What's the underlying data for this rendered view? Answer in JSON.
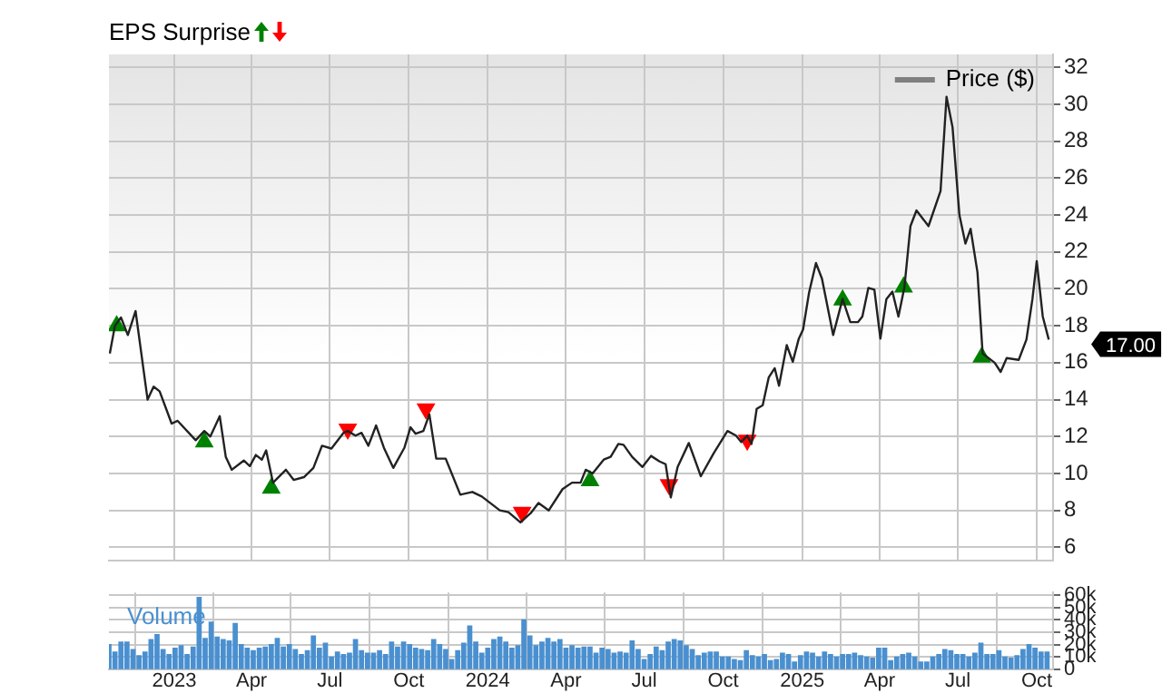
{
  "chart_data": [
    {
      "type": "line",
      "title": "EPS Surprise",
      "legend": "top right",
      "grid": true,
      "tick_labels": "y",
      "marker": "none",
      "xlim": [
        "2022-10-17",
        "2025-10-20"
      ],
      "ylim": [
        5.3,
        32.7
      ],
      "xticks": [
        {
          "value": "2023-01-01",
          "label": null
        },
        {
          "value": "2023-04-01",
          "label": null
        },
        {
          "value": "2023-07-01",
          "label": null
        },
        {
          "value": "2023-10-01",
          "label": null
        },
        {
          "value": "2024-01-01",
          "label": null
        },
        {
          "value": "2024-04-01",
          "label": null
        },
        {
          "value": "2024-07-01",
          "label": null
        },
        {
          "value": "2024-10-01",
          "label": null
        },
        {
          "value": "2025-01-01",
          "label": null
        },
        {
          "value": "2025-04-01",
          "label": null
        },
        {
          "value": "2025-07-01",
          "label": null
        },
        {
          "value": "2025-10-01",
          "label": null
        }
      ],
      "yticks": [
        6,
        8,
        10,
        12,
        14,
        16,
        18,
        20,
        22,
        24,
        26,
        28,
        30,
        32
      ],
      "annotations": [
        {
          "text": "17.00",
          "x": "2025-10-15",
          "y": 17
        }
      ],
      "series": [
        {
          "name": "Price ($)",
          "color": "#222222",
          "x": [
            "2022-10-18",
            "2022-10-24",
            "2022-10-31",
            "2022-11-08",
            "2022-11-17",
            "2022-12-01",
            "2022-12-08",
            "2022-12-15",
            "2022-12-29",
            "2023-01-05",
            "2023-01-26",
            "2023-02-05",
            "2023-02-12",
            "2023-02-23",
            "2023-03-02",
            "2023-03-09",
            "2023-03-23",
            "2023-03-30",
            "2023-04-06",
            "2023-04-13",
            "2023-04-18",
            "2023-04-26",
            "2023-05-11",
            "2023-05-20",
            "2023-06-01",
            "2023-06-12",
            "2023-06-22",
            "2023-07-03",
            "2023-07-17",
            "2023-07-22",
            "2023-07-31",
            "2023-08-07",
            "2023-08-15",
            "2023-08-24",
            "2023-09-02",
            "2023-09-13",
            "2023-09-26",
            "2023-10-03",
            "2023-10-09",
            "2023-10-18",
            "2023-10-25",
            "2023-11-02",
            "2023-11-13",
            "2023-11-30",
            "2023-12-14",
            "2023-12-25",
            "2024-01-15",
            "2024-01-25",
            "2024-02-08",
            "2024-02-20",
            "2024-02-29",
            "2024-03-12",
            "2024-03-28",
            "2024-04-08",
            "2024-04-18",
            "2024-04-24",
            "2024-05-02",
            "2024-05-15",
            "2024-05-23",
            "2024-06-01",
            "2024-06-07",
            "2024-06-17",
            "2024-06-29",
            "2024-07-09",
            "2024-07-19",
            "2024-07-26",
            "2024-08-01",
            "2024-08-09",
            "2024-08-22",
            "2024-09-05",
            "2024-09-20",
            "2024-10-06",
            "2024-10-16",
            "2024-10-22",
            "2024-10-29",
            "2024-11-03",
            "2024-11-09",
            "2024-11-16",
            "2024-11-23",
            "2024-11-30",
            "2024-12-05",
            "2024-12-14",
            "2024-12-21",
            "2024-12-28",
            "2025-01-02",
            "2025-01-09",
            "2025-01-17",
            "2025-01-24",
            "2025-02-06",
            "2025-02-17",
            "2025-02-26",
            "2025-03-07",
            "2025-03-12",
            "2025-03-19",
            "2025-03-26",
            "2025-04-02",
            "2025-04-09",
            "2025-04-16",
            "2025-04-23",
            "2025-04-30",
            "2025-05-07",
            "2025-05-14",
            "2025-05-28",
            "2025-06-11",
            "2025-06-18",
            "2025-06-25",
            "2025-07-03",
            "2025-07-10",
            "2025-07-16",
            "2025-07-24",
            "2025-07-30",
            "2025-08-13",
            "2025-08-20",
            "2025-08-27",
            "2025-09-10",
            "2025-09-19",
            "2025-09-26",
            "2025-10-01",
            "2025-10-08",
            "2025-10-15"
          ],
          "values": [
            16.5,
            18.0,
            18.45,
            17.5,
            18.8,
            14.0,
            14.7,
            14.45,
            12.7,
            12.85,
            11.8,
            12.3,
            12.0,
            13.1,
            10.9,
            10.2,
            10.7,
            10.4,
            11.0,
            10.75,
            11.25,
            9.5,
            10.2,
            9.65,
            9.8,
            10.3,
            11.5,
            11.35,
            12.2,
            12.3,
            12.05,
            12.2,
            11.5,
            12.6,
            11.4,
            10.3,
            11.4,
            12.5,
            12.15,
            12.3,
            13.2,
            10.8,
            10.8,
            8.85,
            9.0,
            8.75,
            8.0,
            7.9,
            7.35,
            7.85,
            8.4,
            8.0,
            9.15,
            9.5,
            9.5,
            10.2,
            10.0,
            10.75,
            10.9,
            11.6,
            11.55,
            10.9,
            10.35,
            10.95,
            10.65,
            10.5,
            8.7,
            10.35,
            11.65,
            9.85,
            11.1,
            12.3,
            12.05,
            11.7,
            12.05,
            11.6,
            13.5,
            13.7,
            15.2,
            15.7,
            14.75,
            16.95,
            16.05,
            17.3,
            17.8,
            19.8,
            21.4,
            20.55,
            17.5,
            19.45,
            18.2,
            18.2,
            18.5,
            20.05,
            19.95,
            17.3,
            19.45,
            19.85,
            18.5,
            20.1,
            23.4,
            24.25,
            23.4,
            25.3,
            30.4,
            28.75,
            24.0,
            22.45,
            23.25,
            20.9,
            16.5,
            16.0,
            15.5,
            16.25,
            16.15,
            17.25,
            19.45,
            21.5,
            18.5,
            17.25
          ]
        },
        {
          "type": "scatter",
          "color": "#008000",
          "marker": "triangle",
          "x": [
            "2022-10-26",
            "2023-02-05",
            "2023-04-24",
            "2024-04-29",
            "2025-02-17",
            "2025-04-29",
            "2025-07-29"
          ],
          "values": [
            18.0,
            11.7,
            9.2,
            9.6,
            19.4,
            20.1,
            16.3
          ]
        },
        {
          "type": "scatter",
          "color": "#ff0000",
          "marker": "triangle",
          "x": [
            "2023-07-22",
            "2023-10-21",
            "2024-02-10",
            "2024-07-30",
            "2024-10-29"
          ],
          "values": [
            12.4,
            13.5,
            7.9,
            9.4,
            11.8
          ]
        }
      ]
    },
    {
      "type": "bar",
      "legend": "top left",
      "grid": true,
      "xlim": [
        "2022-10-17",
        "2025-10-20"
      ],
      "ylim": [
        0,
        62000
      ],
      "xticks": [
        {
          "value": "2023-01-01",
          "label": "2023"
        },
        {
          "value": "2023-04-01",
          "label": "Apr"
        },
        {
          "value": "2023-07-01",
          "label": "Jul"
        },
        {
          "value": "2023-10-01",
          "label": "Oct"
        },
        {
          "value": "2024-01-01",
          "label": "2024"
        },
        {
          "value": "2024-04-01",
          "label": "Apr"
        },
        {
          "value": "2024-07-01",
          "label": "Jul"
        },
        {
          "value": "2024-10-01",
          "label": "Oct"
        },
        {
          "value": "2025-01-01",
          "label": "2025"
        },
        {
          "value": "2025-04-01",
          "label": "Apr"
        },
        {
          "value": "2025-07-01",
          "label": "Jul"
        },
        {
          "value": "2025-10-01",
          "label": "Oct"
        }
      ],
      "yticks": [
        0,
        {
          "value": 10000,
          "label": "10k"
        },
        {
          "value": 20000,
          "label": "20k"
        },
        {
          "value": 30000,
          "label": "30k"
        },
        {
          "value": 40000,
          "label": "40k"
        },
        {
          "value": 50000,
          "label": "50k"
        },
        {
          "value": 60000,
          "label": "60k"
        }
      ],
      "series": [
        {
          "name": "Volume",
          "color": "#4a90d0",
          "x": [
            "2022-10-17",
            "2022-10-24",
            "2022-10-31",
            "2022-11-07",
            "2022-11-14",
            "2022-11-21",
            "2022-11-28",
            "2022-12-05",
            "2022-12-12",
            "2022-12-19",
            "2022-12-26",
            "2023-01-02",
            "2023-01-09",
            "2023-01-16",
            "2023-01-23",
            "2023-01-30",
            "2023-02-06",
            "2023-02-13",
            "2023-02-20",
            "2023-02-27",
            "2023-03-06",
            "2023-03-13",
            "2023-03-20",
            "2023-03-27",
            "2023-04-03",
            "2023-04-10",
            "2023-04-17",
            "2023-04-24",
            "2023-05-01",
            "2023-05-08",
            "2023-05-15",
            "2023-05-22",
            "2023-05-29",
            "2023-06-05",
            "2023-06-12",
            "2023-06-19",
            "2023-06-26",
            "2023-07-03",
            "2023-07-10",
            "2023-07-17",
            "2023-07-24",
            "2023-07-31",
            "2023-08-07",
            "2023-08-14",
            "2023-08-21",
            "2023-08-28",
            "2023-09-04",
            "2023-09-11",
            "2023-09-18",
            "2023-09-25",
            "2023-10-02",
            "2023-10-09",
            "2023-10-16",
            "2023-10-23",
            "2023-10-30",
            "2023-11-06",
            "2023-11-13",
            "2023-11-20",
            "2023-11-27",
            "2023-12-04",
            "2023-12-11",
            "2023-12-18",
            "2023-12-25",
            "2024-01-01",
            "2024-01-08",
            "2024-01-15",
            "2024-01-22",
            "2024-01-29",
            "2024-02-05",
            "2024-02-12",
            "2024-02-19",
            "2024-02-26",
            "2024-03-04",
            "2024-03-11",
            "2024-03-18",
            "2024-03-25",
            "2024-04-01",
            "2024-04-08",
            "2024-04-15",
            "2024-04-22",
            "2024-04-29",
            "2024-05-06",
            "2024-05-13",
            "2024-05-20",
            "2024-05-27",
            "2024-06-03",
            "2024-06-10",
            "2024-06-17",
            "2024-06-24",
            "2024-07-01",
            "2024-07-08",
            "2024-07-15",
            "2024-07-22",
            "2024-07-29",
            "2024-08-05",
            "2024-08-12",
            "2024-08-19",
            "2024-08-26",
            "2024-09-02",
            "2024-09-09",
            "2024-09-16",
            "2024-09-23",
            "2024-09-30",
            "2024-10-07",
            "2024-10-14",
            "2024-10-21",
            "2024-10-28",
            "2024-11-04",
            "2024-11-11",
            "2024-11-18",
            "2024-11-25",
            "2024-12-02",
            "2024-12-09",
            "2024-12-16",
            "2024-12-23",
            "2024-12-30",
            "2025-01-06",
            "2025-01-13",
            "2025-01-20",
            "2025-01-27",
            "2025-02-03",
            "2025-02-10",
            "2025-02-17",
            "2025-02-24",
            "2025-03-03",
            "2025-03-10",
            "2025-03-17",
            "2025-03-24",
            "2025-03-31",
            "2025-04-07",
            "2025-04-14",
            "2025-04-21",
            "2025-04-28",
            "2025-05-05",
            "2025-05-12",
            "2025-05-19",
            "2025-05-26",
            "2025-06-02",
            "2025-06-09",
            "2025-06-16",
            "2025-06-23",
            "2025-06-30",
            "2025-07-07",
            "2025-07-14",
            "2025-07-21",
            "2025-07-28",
            "2025-08-04",
            "2025-08-11",
            "2025-08-18",
            "2025-08-25",
            "2025-09-01",
            "2025-09-08",
            "2025-09-15",
            "2025-09-22",
            "2025-09-29",
            "2025-10-06",
            "2025-10-13"
          ],
          "values": [
            20000,
            14000,
            22000,
            22000,
            16000,
            11000,
            14000,
            24000,
            28000,
            16000,
            12000,
            17000,
            19000,
            12000,
            18000,
            58000,
            25000,
            38000,
            26000,
            24000,
            23000,
            37000,
            20000,
            17000,
            15000,
            17000,
            18000,
            20000,
            25000,
            18000,
            20000,
            16000,
            12000,
            15000,
            27000,
            17000,
            21000,
            10000,
            14000,
            12000,
            13000,
            24000,
            15000,
            13000,
            13000,
            15000,
            12000,
            22000,
            18000,
            22000,
            20000,
            17000,
            16000,
            15000,
            24000,
            20000,
            16000,
            8000,
            15000,
            21000,
            35000,
            22000,
            13000,
            17000,
            24000,
            26000,
            22000,
            17000,
            19000,
            40000,
            27000,
            19000,
            22000,
            25000,
            22000,
            24000,
            17000,
            19000,
            17000,
            18000,
            18000,
            13000,
            17000,
            16000,
            13000,
            14000,
            13000,
            23000,
            16000,
            8000,
            12000,
            18000,
            15000,
            22000,
            24000,
            23000,
            19000,
            16000,
            11000,
            13000,
            14000,
            14000,
            10000,
            10000,
            8000,
            7000,
            15000,
            11000,
            10000,
            12000,
            7000,
            8000,
            13000,
            12000,
            6000,
            11000,
            14000,
            13000,
            10000,
            14000,
            12000,
            10000,
            12000,
            12000,
            13000,
            11000,
            10000,
            9000,
            17000,
            17000,
            7000,
            10000,
            12000,
            13000,
            10000,
            6000,
            6000,
            10000,
            12000,
            16000,
            15000,
            12000,
            12000,
            10000,
            13000,
            21000,
            12000,
            12000,
            15000,
            10000,
            9000,
            11000,
            16000,
            20000,
            17000,
            14000,
            14000
          ]
        }
      ]
    }
  ]
}
